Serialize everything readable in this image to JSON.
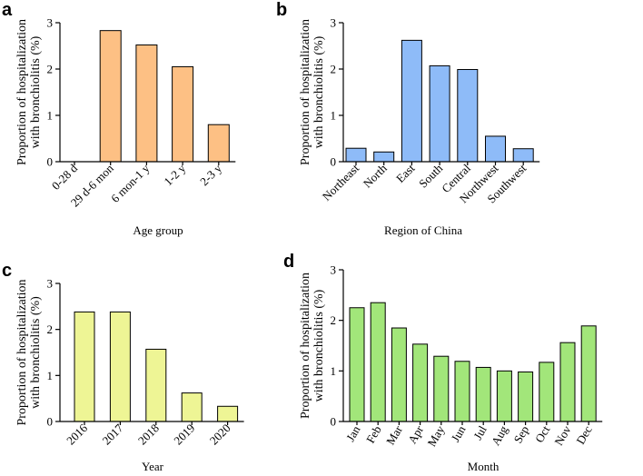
{
  "chart_data": [
    {
      "panel": "a",
      "type": "bar",
      "title": "",
      "xlabel": "Age group",
      "ylabel": [
        "Proportion of hospitalization",
        "with bronchiolitis (%)"
      ],
      "ylim": [
        0,
        3
      ],
      "yticks": [
        0,
        1,
        2,
        3
      ],
      "grid": false,
      "categories": [
        "0-28 d",
        "29 d-6 mon",
        "6 mon-1 y",
        "1-2 y",
        "2-3 y"
      ],
      "values": [
        0,
        2.83,
        2.52,
        2.05,
        0.8
      ],
      "color": "#FDC084"
    },
    {
      "panel": "b",
      "type": "bar",
      "title": "",
      "xlabel": "Region of China",
      "ylabel": [
        "Proportion of hospitalization",
        "with bronchiolitis (%)"
      ],
      "ylim": [
        0,
        3
      ],
      "yticks": [
        0,
        1,
        2,
        3
      ],
      "grid": false,
      "categories": [
        "Northeast",
        "North",
        "East",
        "South",
        "Central",
        "Northwest",
        "Southwest"
      ],
      "values": [
        0.29,
        0.21,
        2.62,
        2.07,
        1.99,
        0.55,
        0.28
      ],
      "color": "#8EBBF8"
    },
    {
      "panel": "c",
      "type": "bar",
      "title": "",
      "xlabel": "Year",
      "ylabel": [
        "Proportion of hospitalization",
        "with bronchiolitis (%)"
      ],
      "ylim": [
        0,
        3
      ],
      "yticks": [
        0,
        1,
        2,
        3
      ],
      "grid": false,
      "categories": [
        "2016",
        "2017",
        "2018",
        "2019",
        "2020"
      ],
      "values": [
        2.38,
        2.38,
        1.57,
        0.62,
        0.33
      ],
      "color": "#EEF595"
    },
    {
      "panel": "d",
      "type": "bar",
      "title": "",
      "xlabel": "Month",
      "ylabel": [
        "Proportion of hospitalization",
        "with bronchiolitis (%)"
      ],
      "ylim": [
        0,
        3
      ],
      "yticks": [
        0,
        1,
        2,
        3
      ],
      "grid": false,
      "categories": [
        "Jan",
        "Feb",
        "Mar",
        "Apr",
        "May",
        "Jun",
        "Jul",
        "Aug",
        "Sep",
        "Oct",
        "Nov",
        "Dec"
      ],
      "values": [
        2.25,
        2.35,
        1.85,
        1.53,
        1.29,
        1.19,
        1.07,
        1.0,
        0.98,
        1.17,
        1.56,
        1.89
      ],
      "color": "#A2E67A"
    }
  ]
}
